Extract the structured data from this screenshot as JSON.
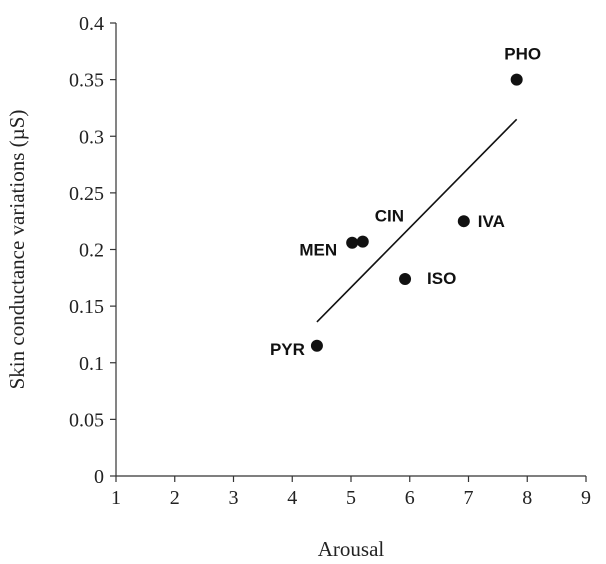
{
  "chart_data": {
    "type": "scatter",
    "title": "",
    "xlabel": "Arousal",
    "ylabel": "Skin conductance variations (µS)",
    "xlim": [
      1,
      9
    ],
    "ylim": [
      0,
      0.4
    ],
    "x_ticks": [
      "1",
      "2",
      "3",
      "4",
      "5",
      "6",
      "7",
      "8",
      "9"
    ],
    "y_ticks": [
      "0",
      "0.05",
      "0.1",
      "0.15",
      "0.2",
      "0.25",
      "0.3",
      "0.35",
      "0.4"
    ],
    "grid": false,
    "legend": "none",
    "points": [
      {
        "label": "PHO",
        "x": 7.82,
        "y": 0.35
      },
      {
        "label": "IVA",
        "x": 6.92,
        "y": 0.225
      },
      {
        "label": "CIN",
        "x": 5.2,
        "y": 0.207
      },
      {
        "label": "MEN",
        "x": 5.02,
        "y": 0.206
      },
      {
        "label": "ISO",
        "x": 5.92,
        "y": 0.174
      },
      {
        "label": "PYR",
        "x": 4.42,
        "y": 0.115
      }
    ],
    "trendline": {
      "x": [
        4.42,
        7.82
      ],
      "y": [
        0.136,
        0.315
      ]
    },
    "marker_color": "#111111"
  }
}
